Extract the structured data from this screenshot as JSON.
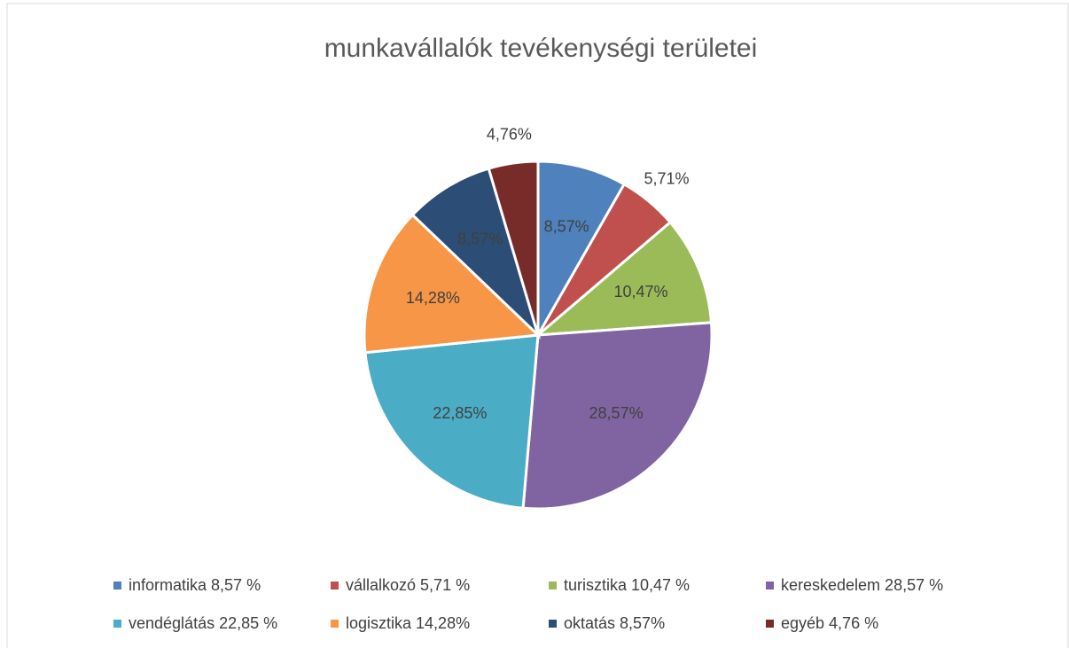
{
  "chart_data": {
    "type": "pie",
    "title": "munkavállalók tevékenységi területei",
    "categories": [
      "informatika 8,57 %",
      "vállalkozó 5,71 %",
      "turisztika 10,47 %",
      "kereskedelem 28,57 %",
      "vendéglátás 22,85 %",
      "logisztika 14,28%",
      "oktatás 8,57%",
      "egyéb 4,76 %"
    ],
    "values": [
      8.57,
      5.71,
      10.47,
      28.57,
      22.85,
      14.28,
      8.57,
      4.76
    ],
    "value_labels": [
      "8,57%",
      "5,71%",
      "10,47%",
      "28,57%",
      "22,85%",
      "14,28%",
      "8,57%",
      "4,76%"
    ],
    "colors": [
      "#4f81bd",
      "#c0504d",
      "#9bbb59",
      "#8064a2",
      "#4bacc6",
      "#f79646",
      "#2c4d75",
      "#772c2a"
    ],
    "legend": "bottom"
  }
}
